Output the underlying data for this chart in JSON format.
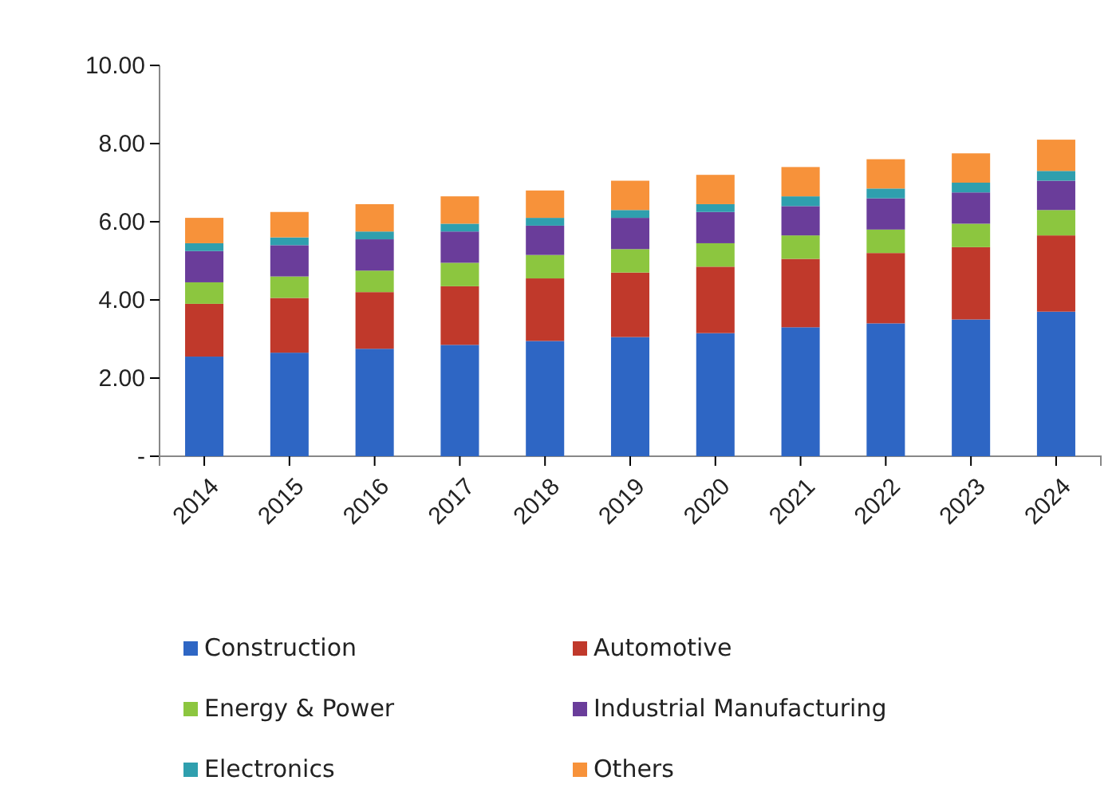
{
  "chart_data": {
    "type": "bar",
    "stacked": true,
    "categories": [
      "2014",
      "2015",
      "2016",
      "2017",
      "2018",
      "2019",
      "2020",
      "2021",
      "2022",
      "2023",
      "2024"
    ],
    "series": [
      {
        "name": "Construction",
        "color": "#2e66c4",
        "values": [
          2.55,
          2.65,
          2.75,
          2.85,
          2.95,
          3.05,
          3.15,
          3.3,
          3.4,
          3.5,
          3.7
        ]
      },
      {
        "name": "Automotive",
        "color": "#c0392b",
        "values": [
          1.35,
          1.4,
          1.45,
          1.5,
          1.6,
          1.65,
          1.7,
          1.75,
          1.8,
          1.85,
          1.95
        ]
      },
      {
        "name": "Energy & Power",
        "color": "#8cc63f",
        "values": [
          0.55,
          0.55,
          0.55,
          0.6,
          0.6,
          0.6,
          0.6,
          0.6,
          0.6,
          0.6,
          0.65
        ]
      },
      {
        "name": "Industrial Manufacturing",
        "color": "#6a3d9a",
        "values": [
          0.8,
          0.8,
          0.8,
          0.8,
          0.75,
          0.8,
          0.8,
          0.75,
          0.8,
          0.8,
          0.75
        ]
      },
      {
        "name": "Electronics",
        "color": "#2f9fae",
        "values": [
          0.2,
          0.2,
          0.2,
          0.2,
          0.2,
          0.2,
          0.2,
          0.25,
          0.25,
          0.25,
          0.25
        ]
      },
      {
        "name": "Others",
        "color": "#f7923a",
        "values": [
          0.65,
          0.65,
          0.7,
          0.7,
          0.7,
          0.75,
          0.75,
          0.75,
          0.75,
          0.75,
          0.8
        ]
      }
    ],
    "ylim": [
      0,
      10
    ],
    "yticks": [
      {
        "value": 0,
        "label": "-"
      },
      {
        "value": 2,
        "label": "2.00"
      },
      {
        "value": 4,
        "label": "4.00"
      },
      {
        "value": 6,
        "label": "6.00"
      },
      {
        "value": 8,
        "label": "8.00"
      },
      {
        "value": 10,
        "label": "10.00"
      }
    ],
    "legend": "bottom"
  }
}
